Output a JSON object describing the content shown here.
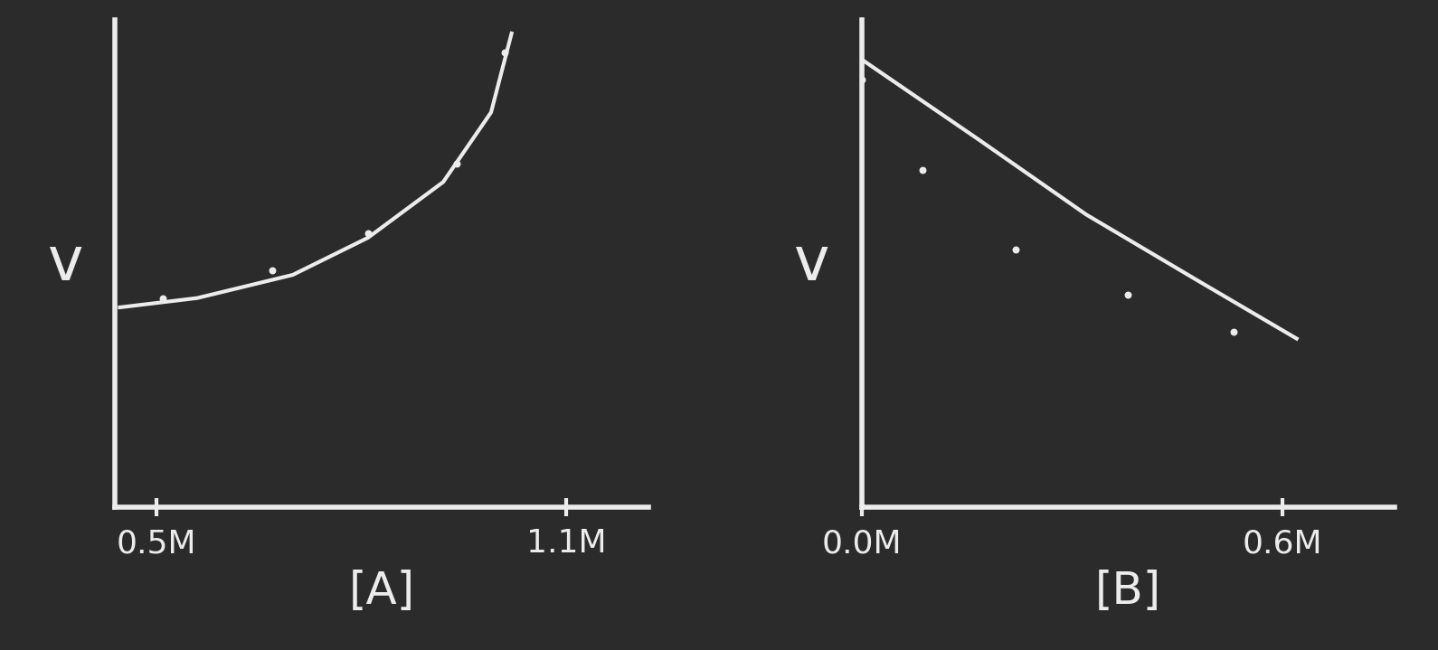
{
  "chart_data": [
    {
      "type": "scatter",
      "y_label": "v",
      "x_label": "[A]",
      "xlim": [
        0.44,
        1.22
      ],
      "ylim": [
        0,
        10.5
      ],
      "xticks": [
        {
          "value": 0.5,
          "label": "0.5M"
        },
        {
          "value": 1.1,
          "label": "1.1M"
        }
      ],
      "yticks": [],
      "tick_labels": "x",
      "color": "#ececec",
      "series": [
        {
          "type": "scatter",
          "marker": "o",
          "x": [
            0.51,
            0.67,
            0.81,
            0.94,
            1.01
          ],
          "values": [
            4.5,
            5.1,
            5.9,
            7.4,
            9.8
          ]
        },
        {
          "type": "line",
          "line_style": "solid",
          "x": [
            0.447,
            0.56,
            0.7,
            0.81,
            0.92,
            0.99,
            1.02
          ],
          "values": [
            4.3,
            4.5,
            5.0,
            5.8,
            7.0,
            8.5,
            10.2
          ]
        }
      ]
    },
    {
      "type": "scatter",
      "y_label": "v",
      "x_label": "[B]",
      "xlim": [
        0,
        0.76
      ],
      "ylim": [
        0,
        11
      ],
      "xticks": [
        {
          "value": 0,
          "label": "0.0M"
        },
        {
          "value": 0.6,
          "label": "0.6M"
        }
      ],
      "yticks": [],
      "tick_labels": "x",
      "color": "#ececec",
      "series": [
        {
          "type": "scatter",
          "marker": "o",
          "x": [
            0.0,
            0.087,
            0.22,
            0.38,
            0.53
          ],
          "values": [
            9.65,
            7.6,
            5.8,
            4.8,
            3.95
          ]
        },
        {
          "type": "line",
          "line_style": "solid",
          "x": [
            0.0,
            0.166,
            0.32,
            0.48,
            0.62
          ],
          "values": [
            10.1,
            8.3,
            6.6,
            5.1,
            3.8
          ]
        }
      ]
    }
  ]
}
